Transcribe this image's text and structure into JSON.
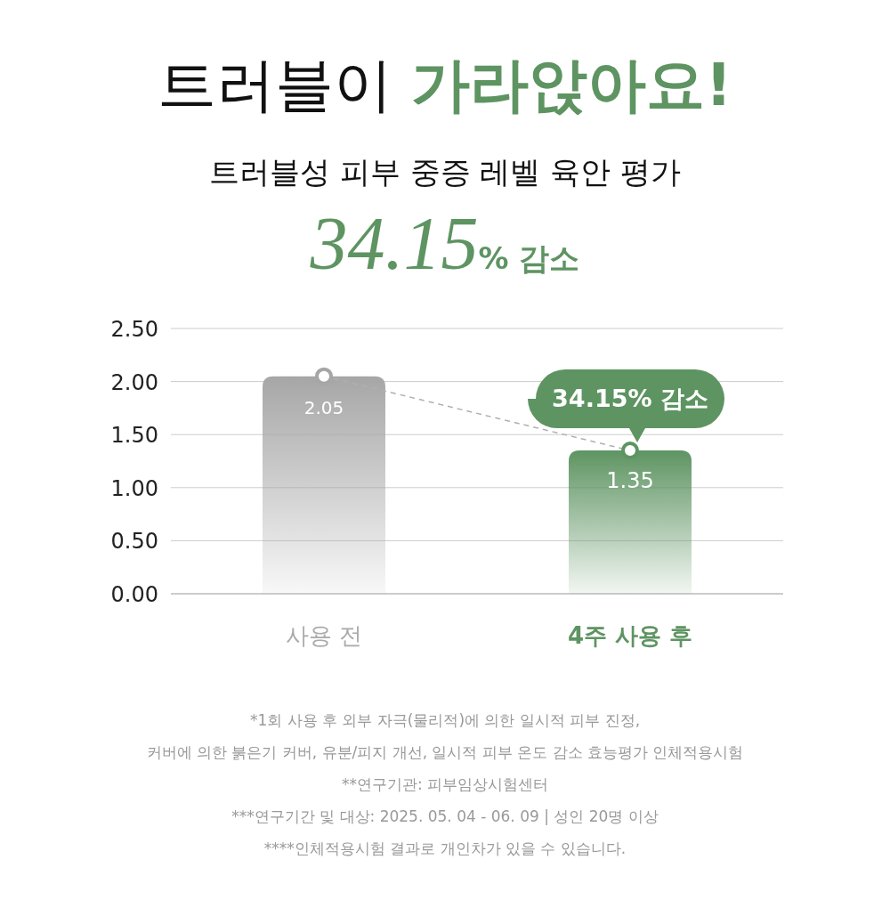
{
  "chart_data": {
    "type": "bar",
    "title": "트러블이 가라앉아요!",
    "subtitle": "트러블성 피부 중증 레벨 육안 평가",
    "categories": [
      "사용 전",
      "4주 사용 후"
    ],
    "series": [
      {
        "colors": [
          "#a6a6a6",
          "#5e9462"
        ],
        "values": [
          2.05,
          1.35
        ],
        "value_labels": [
          "2.05",
          "1.35"
        ]
      },
      {
        "type": "line",
        "color": "#b0b0b0",
        "values": [
          2.05,
          1.35
        ],
        "marker": "circle",
        "line_style": "dashed"
      }
    ],
    "ylim": [
      0,
      2.5
    ],
    "yticks": [
      {
        "value": 0,
        "label": "0.00"
      },
      {
        "value": 0.5,
        "label": "0.50"
      },
      {
        "value": 1,
        "label": "1.00"
      },
      {
        "value": 1.5,
        "label": "1.50"
      },
      {
        "value": 2,
        "label": "2.00"
      },
      {
        "value": 2.5,
        "label": "2.50"
      }
    ],
    "grid": "y",
    "annotations": [
      "34.15% 감소",
      {
        "text": "34.15% 감소",
        "x": "4주 사용 후",
        "y": 1.35
      },
      "*1회 사용 후 외부 자극(물리적)에 의한 일시적 피부 진정,",
      "커버에 의한 붉은기 커버, 유분/피지 개선, 일시적 피부 온도 감소 효능평가 인체적용시험",
      "**연구기관: 피부임상시험센터",
      "***연구기간 및 대상: 2025. 05. 04 - 06. 09  |  성인 20명 이상",
      "****인체적용시험 결과로 개인차가 있을 수 있습니다."
    ]
  }
}
